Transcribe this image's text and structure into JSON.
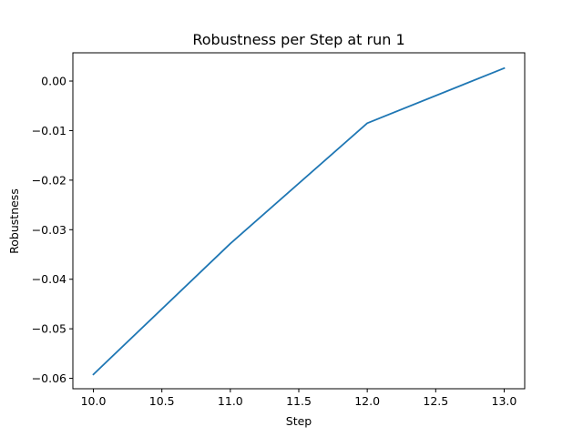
{
  "chart_data": {
    "type": "line",
    "title": "Robustness per Step at run 1",
    "xlabel": "Step",
    "ylabel": "Robustness",
    "xlim": [
      9.85,
      13.15
    ],
    "ylim": [
      -0.0621,
      0.0057
    ],
    "xticks": [
      10.0,
      10.5,
      11.0,
      11.5,
      12.0,
      12.5,
      13.0
    ],
    "xtick_labels": [
      "10.0",
      "10.5",
      "11.0",
      "11.5",
      "12.0",
      "12.5",
      "13.0"
    ],
    "yticks": [
      0.0,
      -0.01,
      -0.02,
      -0.03,
      -0.04,
      -0.05,
      -0.06
    ],
    "ytick_labels": [
      "0.00",
      "−0.01",
      "−0.02",
      "−0.03",
      "−0.04",
      "−0.05",
      "−0.06"
    ],
    "grid": false,
    "series": [
      {
        "color": "#1f77b4",
        "x": [
          10,
          11,
          12,
          13
        ],
        "y": [
          -0.0592,
          -0.0328,
          -0.0085,
          0.0026
        ]
      }
    ]
  }
}
